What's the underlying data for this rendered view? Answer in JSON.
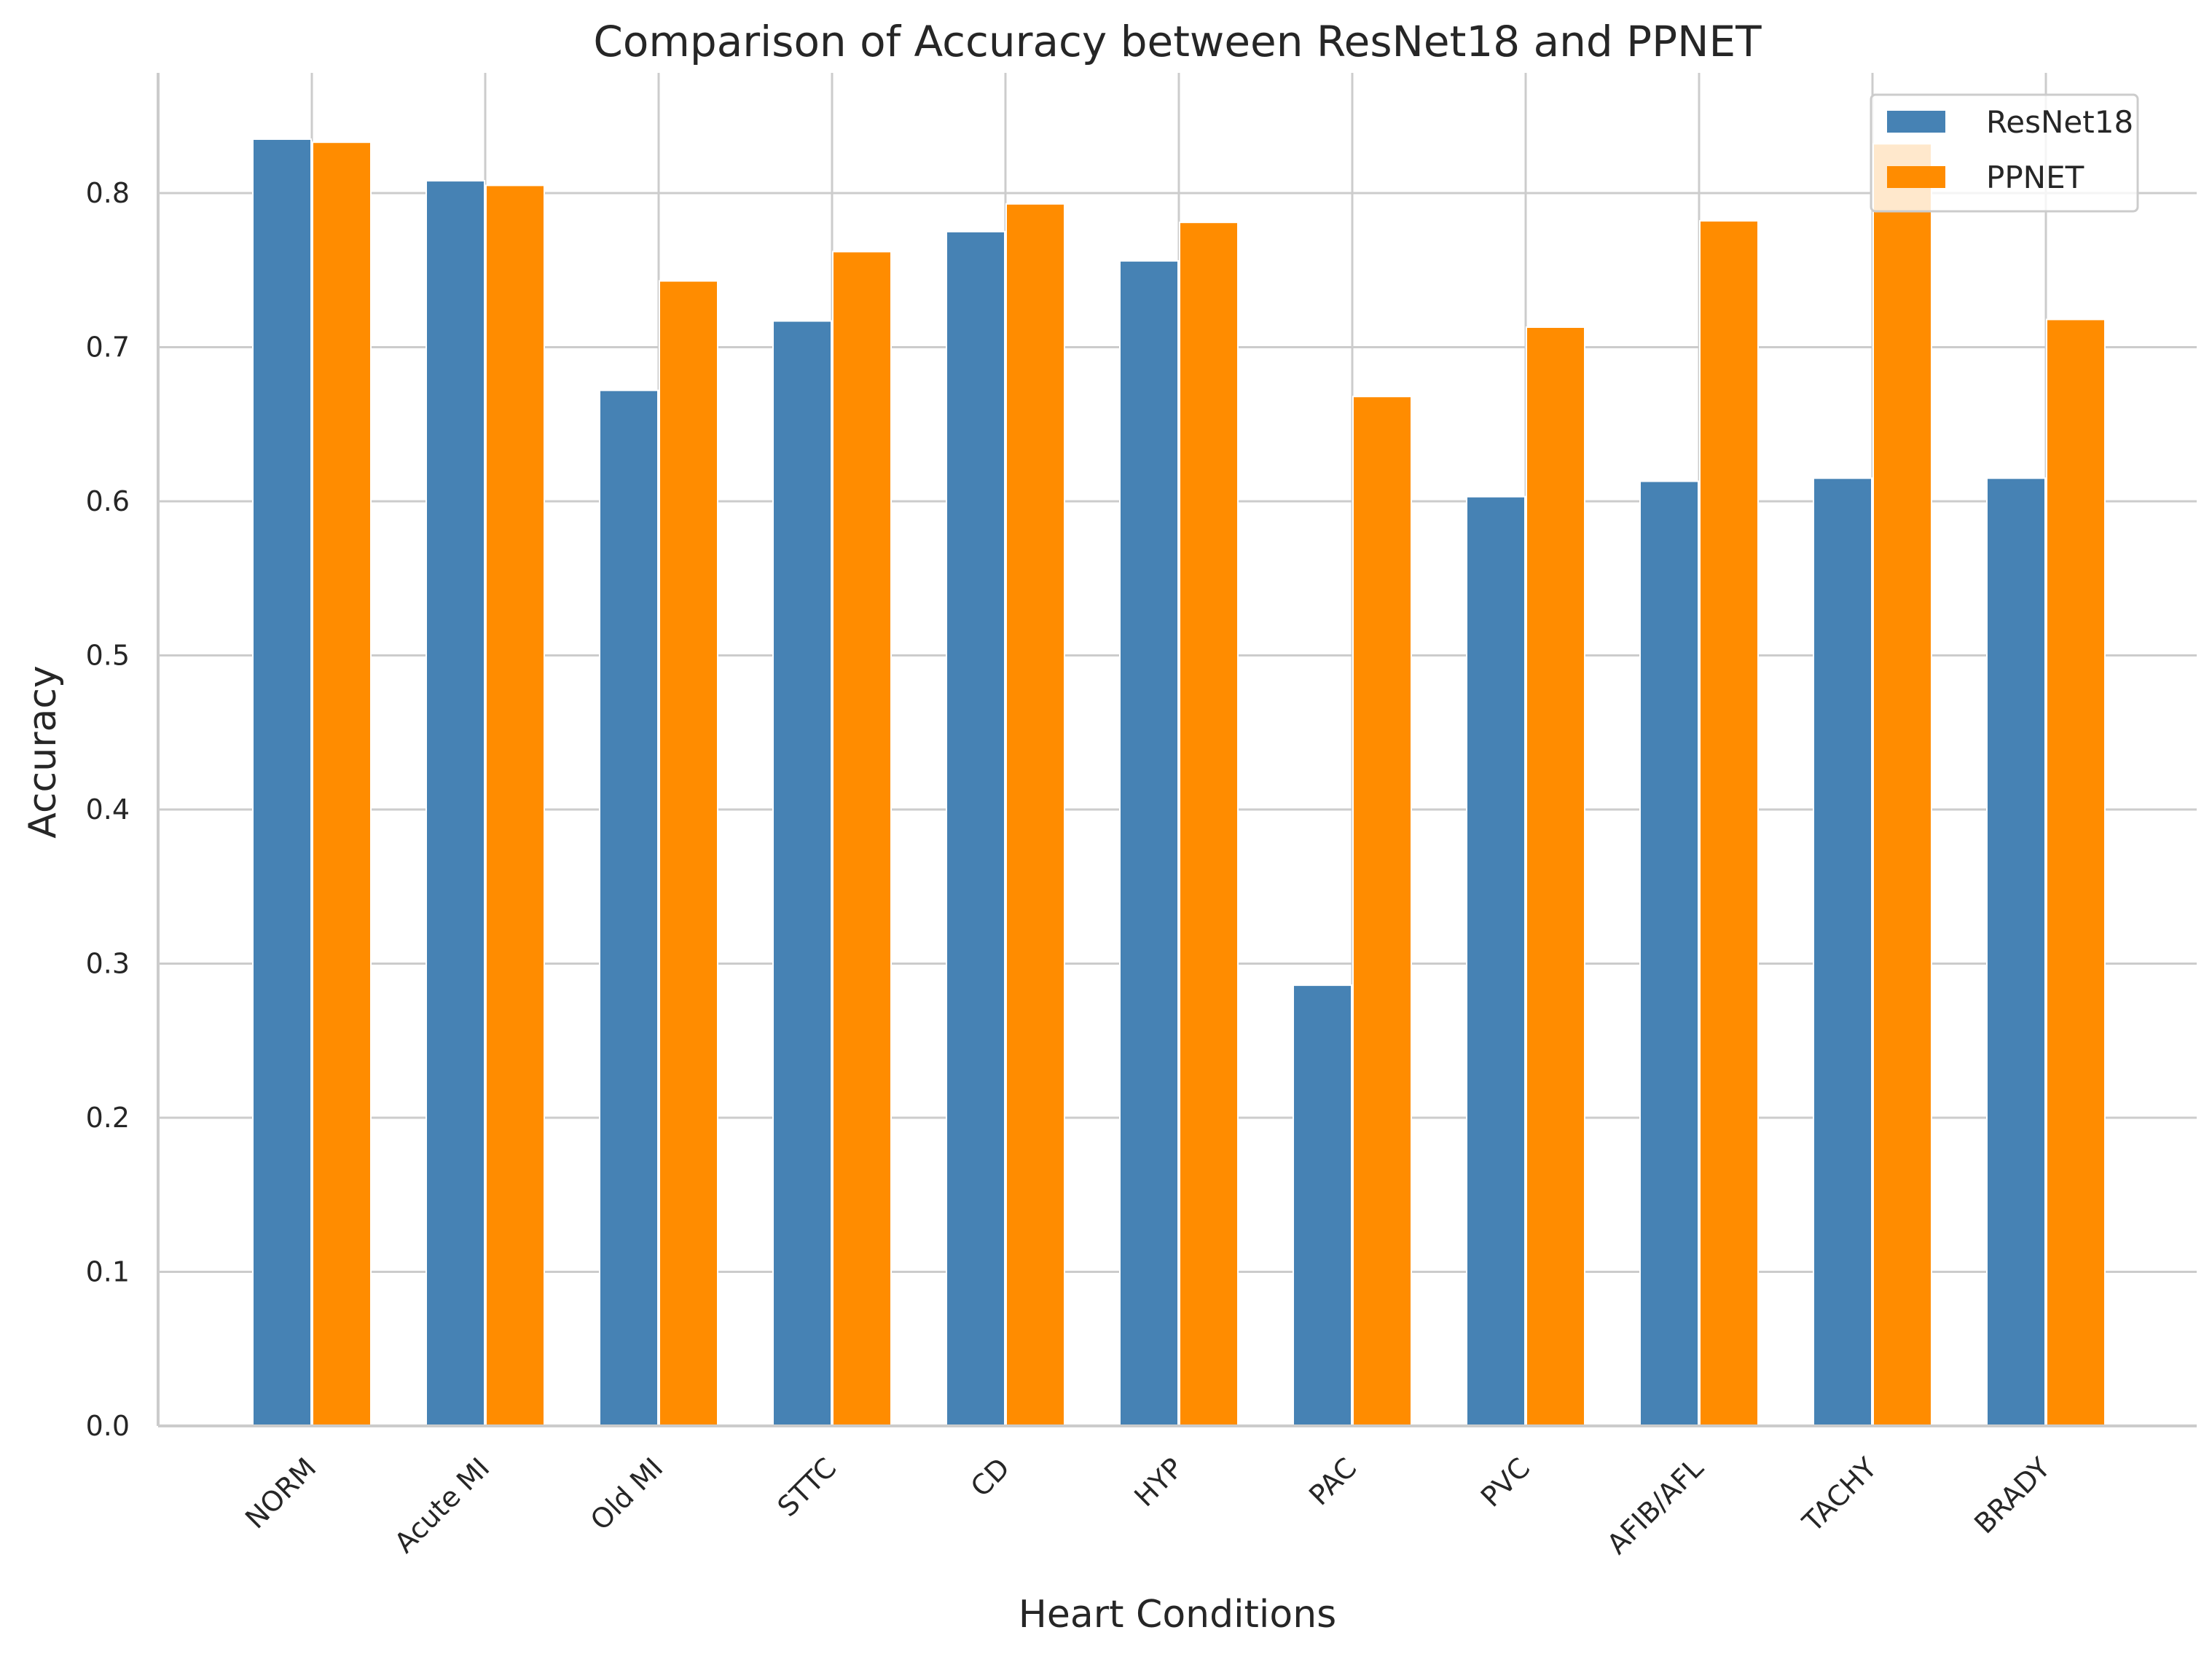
{
  "chart_data": {
    "type": "bar",
    "title": "Comparison of Accuracy between ResNet18 and PPNET",
    "xlabel": "Heart Conditions",
    "ylabel": "Accuracy",
    "categories": [
      "NORM",
      "Acute MI",
      "Old MI",
      "STTC",
      "CD",
      "HYP",
      "PAC",
      "PVC",
      "AFIB/AFL",
      "TACHY",
      "BRADY"
    ],
    "series": [
      {
        "name": "ResNet18",
        "color": "#4682b4",
        "values": [
          0.835,
          0.808,
          0.672,
          0.717,
          0.775,
          0.756,
          0.286,
          0.603,
          0.613,
          0.615,
          0.615
        ]
      },
      {
        "name": "PPNET",
        "color": "#ff8c00",
        "values": [
          0.833,
          0.805,
          0.743,
          0.762,
          0.793,
          0.781,
          0.668,
          0.713,
          0.782,
          0.832,
          0.718
        ]
      }
    ],
    "yticks": [
      "0.0",
      "0.1",
      "0.2",
      "0.3",
      "0.4",
      "0.5",
      "0.6",
      "0.7",
      "0.8"
    ],
    "ylim": [
      0,
      0.88
    ],
    "grid": true,
    "legend_position": "top-right"
  }
}
